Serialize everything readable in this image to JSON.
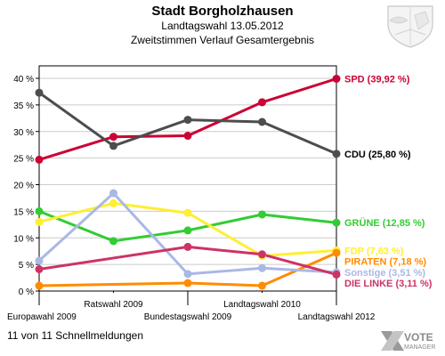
{
  "header": {
    "title": "Stadt Borgholzhausen",
    "subtitle": "Landtagswahl 13.05.2012",
    "description": "Zweitstimmen Verlauf Gesamtergebnis"
  },
  "footer": {
    "status": "11 von 11 Schnellmeldungen"
  },
  "logo": {
    "line1": "VOTE",
    "line2": "MANAGER"
  },
  "chart_data": {
    "type": "line",
    "title": "Zweitstimmen Verlauf Gesamtergebnis",
    "categories": [
      "Europawahl 2009",
      "Ratswahl 2009",
      "Bundestagswahl 2009",
      "Landtagswahl 2010",
      "Landtagswahl 2012"
    ],
    "ylim": [
      0,
      40
    ],
    "yticks": [
      0,
      5,
      10,
      15,
      20,
      25,
      30,
      35,
      40
    ],
    "ytick_labels": [
      "0 %",
      "5 %",
      "10 %",
      "15 %",
      "20 %",
      "25 %",
      "30 %",
      "35 %",
      "40 %"
    ],
    "grid": "horizontal",
    "series": [
      {
        "name": "SPD",
        "label": "SPD (39,92 %)",
        "color": "#cc0033",
        "values": [
          24.7,
          29.0,
          29.2,
          35.5,
          39.92
        ]
      },
      {
        "name": "CDU",
        "label": "CDU (25,80 %)",
        "color": "#4d4d4d",
        "values": [
          37.3,
          27.3,
          32.2,
          31.8,
          25.8
        ]
      },
      {
        "name": "GRÜNE",
        "label": "GRÜNE (12,85 %)",
        "color": "#33cc33",
        "values": [
          15.0,
          9.4,
          11.4,
          14.4,
          12.85
        ]
      },
      {
        "name": "FDP",
        "label": "FDP (7,63 %)",
        "color": "#ffee33",
        "values": [
          13.0,
          16.5,
          14.7,
          6.6,
          7.63
        ]
      },
      {
        "name": "PIRATEN",
        "label": "PIRATEN (7,18 %)",
        "color": "#ff8c00",
        "values": [
          1.0,
          null,
          1.5,
          1.0,
          7.18
        ]
      },
      {
        "name": "Sonstige",
        "label": "Sonstige (3,51 %)",
        "color": "#aab8e6",
        "values": [
          5.7,
          18.4,
          3.2,
          4.3,
          3.51
        ]
      },
      {
        "name": "DIE LINKE",
        "label": "DIE LINKE (3,11 %)",
        "color": "#cc3366",
        "values": [
          4.1,
          null,
          8.3,
          6.9,
          3.11
        ]
      }
    ]
  }
}
